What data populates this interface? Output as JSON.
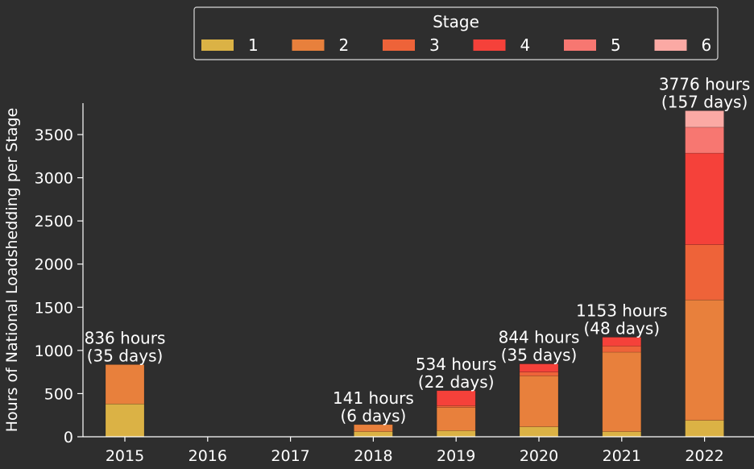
{
  "chart_data": {
    "type": "bar",
    "stacked": true,
    "title": "",
    "xlabel": "",
    "ylabel": "Hours of National Loadshedding per Stage",
    "ylim": [
      0,
      3850
    ],
    "yticks": [
      0,
      500,
      1000,
      1500,
      2000,
      2500,
      3000,
      3500
    ],
    "categories": [
      "2015",
      "2016",
      "2017",
      "2018",
      "2019",
      "2020",
      "2021",
      "2022"
    ],
    "legend": {
      "title": "Stage",
      "placement": "top-center",
      "columns": 6
    },
    "series": [
      {
        "name": "1",
        "color": "#dbb245",
        "values": [
          380,
          0,
          0,
          60,
          70,
          115,
          60,
          190
        ]
      },
      {
        "name": "2",
        "color": "#e8803c",
        "values": [
          456,
          0,
          0,
          81,
          270,
          590,
          920,
          1395
        ]
      },
      {
        "name": "3",
        "color": "#ee6339",
        "values": [
          0,
          0,
          0,
          0,
          20,
          45,
          70,
          640
        ]
      },
      {
        "name": "4",
        "color": "#f5413a",
        "values": [
          0,
          0,
          0,
          0,
          174,
          94,
          103,
          1060
        ]
      },
      {
        "name": "5",
        "color": "#f77771",
        "values": [
          0,
          0,
          0,
          0,
          0,
          0,
          0,
          300
        ]
      },
      {
        "name": "6",
        "color": "#fba9a4",
        "values": [
          0,
          0,
          0,
          0,
          0,
          0,
          0,
          191
        ]
      }
    ],
    "annotations": [
      {
        "category": "2015",
        "line1": "836 hours",
        "line2": "(35 days)"
      },
      {
        "category": "2018",
        "line1": "141 hours",
        "line2": "(6 days)"
      },
      {
        "category": "2019",
        "line1": "534 hours",
        "line2": "(22 days)"
      },
      {
        "category": "2020",
        "line1": "844 hours",
        "line2": "(35 days)"
      },
      {
        "category": "2021",
        "line1": "1153 hours",
        "line2": "(48 days)"
      },
      {
        "category": "2022",
        "line1": "3776 hours",
        "line2": "(157 days)"
      }
    ],
    "grid": false
  }
}
